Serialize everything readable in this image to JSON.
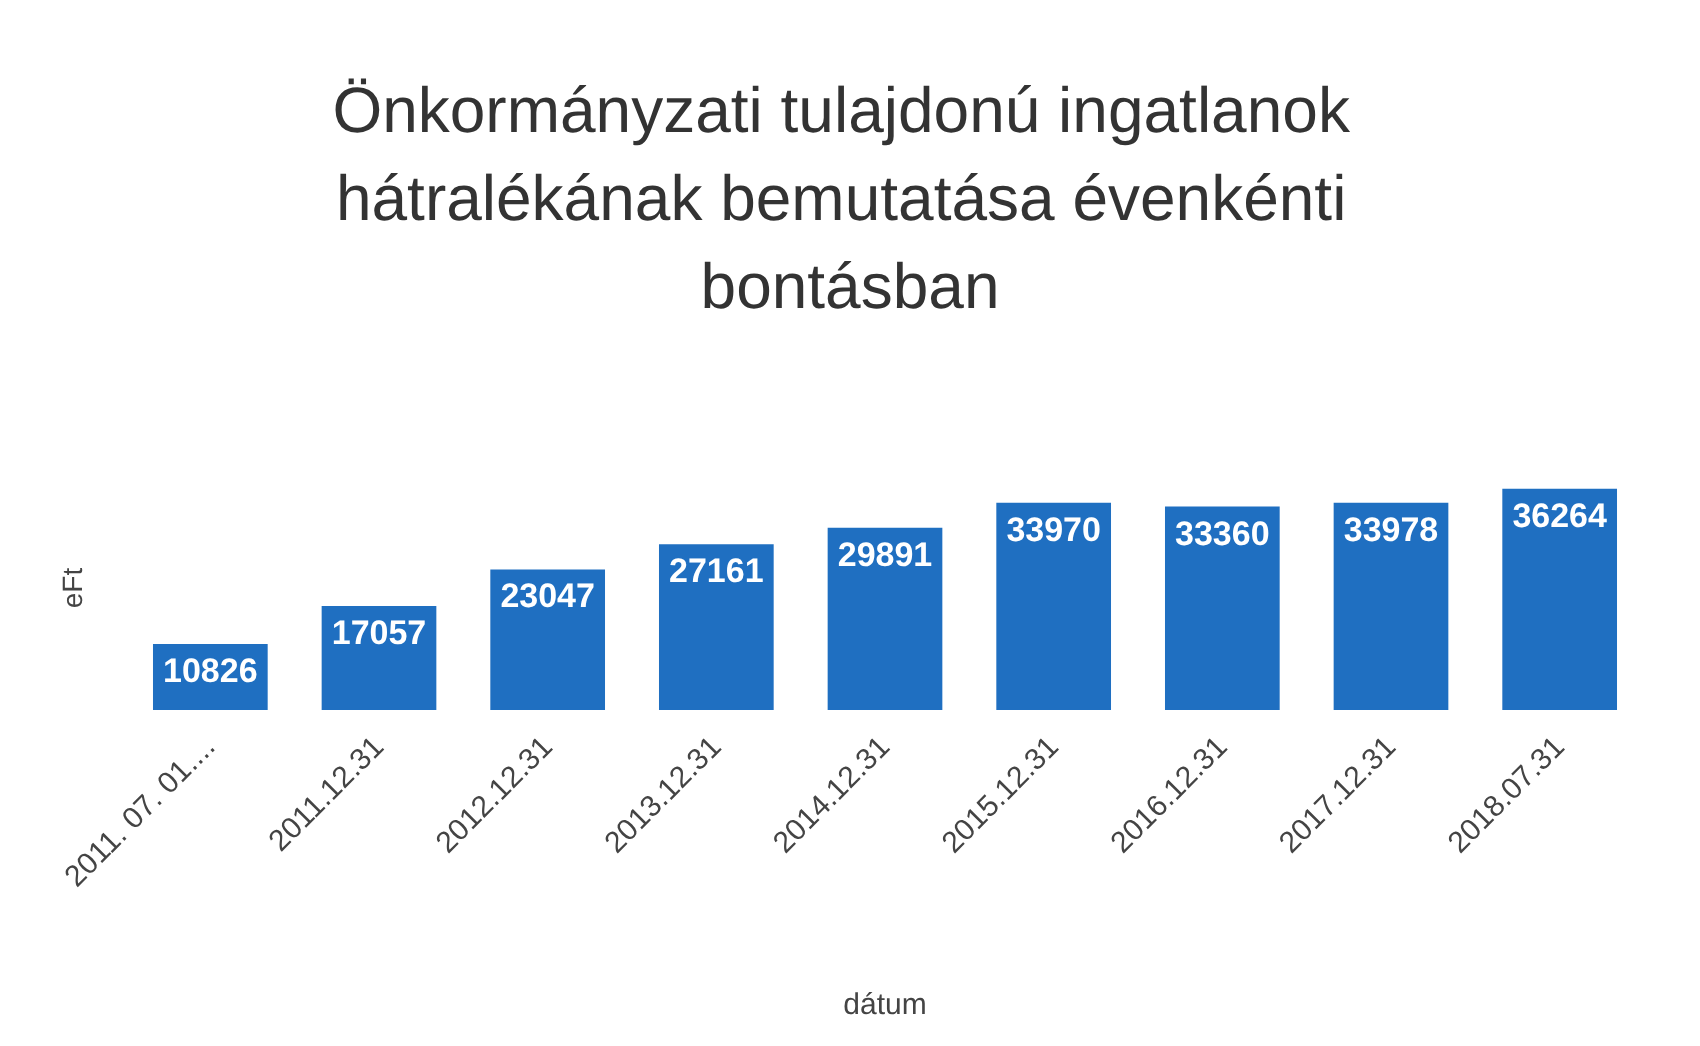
{
  "chart_data": {
    "type": "bar",
    "title": "Önkormányzati tulajdonú ingatlanok hátralékának bemutatása évenkénti bontásban",
    "xlabel": "dátum",
    "ylabel": "eFt",
    "categories": [
      "2011. 07. 01....",
      "2011.12.31",
      "2012.12.31",
      "2013.12.31",
      "2014.12.31",
      "2015.12.31",
      "2016.12.31",
      "2017.12.31",
      "2018.07.31"
    ],
    "values": [
      10826,
      17057,
      23047,
      27161,
      29891,
      33970,
      33360,
      33978,
      36264
    ],
    "color": "#1f6fc1",
    "data_labels": true
  }
}
